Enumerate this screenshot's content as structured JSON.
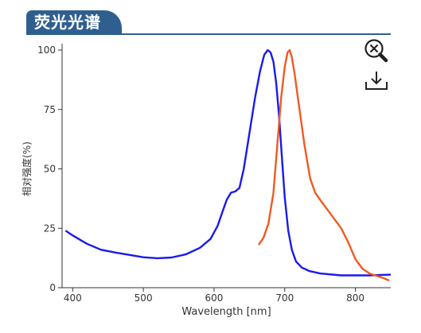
{
  "header": {
    "title": "荧光光谱"
  },
  "toolbar": {
    "zoom_icon": "zoom-reset-icon",
    "download_icon": "download-icon"
  },
  "colors": {
    "excitation_series": "#1a1aee",
    "emission_series": "#f05a22",
    "header": "#2f5f8f"
  },
  "chart_data": {
    "type": "line",
    "xlabel": "Wavelength [nm]",
    "ylabel": "相对强度(%)",
    "xlim": [
      385,
      850
    ],
    "ylim": [
      0,
      100
    ],
    "xticks": [
      400,
      500,
      600,
      700,
      800
    ],
    "yticks": [
      0,
      25,
      50,
      75,
      100
    ],
    "grid": false,
    "series": [
      {
        "color": "#1a1aee",
        "points": [
          [
            390,
            24
          ],
          [
            400,
            22
          ],
          [
            420,
            18.5
          ],
          [
            440,
            16
          ],
          [
            460,
            14.8
          ],
          [
            480,
            13.8
          ],
          [
            500,
            12.8
          ],
          [
            520,
            12.4
          ],
          [
            540,
            12.7
          ],
          [
            560,
            14
          ],
          [
            580,
            16.8
          ],
          [
            595,
            20.5
          ],
          [
            605,
            26
          ],
          [
            612,
            32
          ],
          [
            618,
            37
          ],
          [
            624,
            40
          ],
          [
            630,
            40.5
          ],
          [
            636,
            42
          ],
          [
            642,
            50
          ],
          [
            650,
            65
          ],
          [
            658,
            80
          ],
          [
            665,
            91
          ],
          [
            671,
            98
          ],
          [
            676,
            100
          ],
          [
            680,
            99
          ],
          [
            684,
            95
          ],
          [
            688,
            86
          ],
          [
            692,
            72
          ],
          [
            696,
            55
          ],
          [
            700,
            38
          ],
          [
            705,
            24
          ],
          [
            710,
            16
          ],
          [
            716,
            11
          ],
          [
            724,
            8.5
          ],
          [
            735,
            7
          ],
          [
            750,
            6
          ],
          [
            780,
            5.2
          ],
          [
            820,
            5.2
          ],
          [
            850,
            5.5
          ]
        ]
      },
      {
        "color": "#f05a22",
        "points": [
          [
            663,
            18
          ],
          [
            670,
            21
          ],
          [
            677,
            27
          ],
          [
            684,
            40
          ],
          [
            690,
            62
          ],
          [
            695,
            80
          ],
          [
            700,
            93
          ],
          [
            704,
            99
          ],
          [
            707,
            100
          ],
          [
            710,
            97
          ],
          [
            714,
            90
          ],
          [
            720,
            77
          ],
          [
            728,
            60
          ],
          [
            736,
            46
          ],
          [
            743,
            40
          ],
          [
            750,
            37
          ],
          [
            760,
            33
          ],
          [
            770,
            29
          ],
          [
            780,
            25
          ],
          [
            790,
            19
          ],
          [
            800,
            12
          ],
          [
            810,
            8
          ],
          [
            820,
            6
          ],
          [
            830,
            5
          ],
          [
            840,
            4
          ],
          [
            848,
            3
          ]
        ]
      }
    ]
  }
}
